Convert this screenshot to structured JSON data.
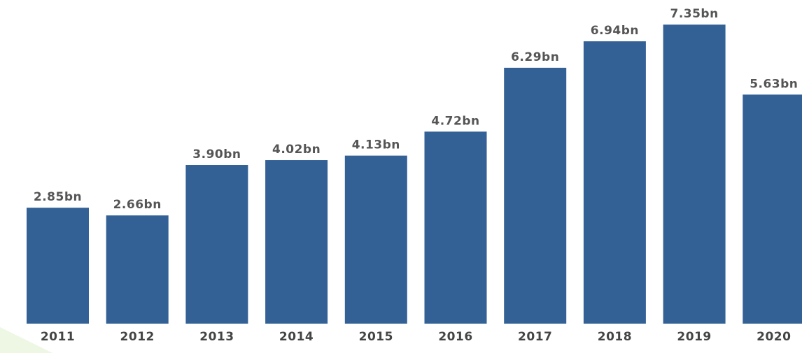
{
  "chart_data": {
    "type": "bar",
    "categories": [
      "2011",
      "2012",
      "2013",
      "2014",
      "2015",
      "2016",
      "2017",
      "2018",
      "2019",
      "2020"
    ],
    "values": [
      2.85,
      2.66,
      3.9,
      4.02,
      4.13,
      4.72,
      6.29,
      6.94,
      7.35,
      5.63
    ],
    "value_labels": [
      "2.85bn",
      "2.66bn",
      "3.90bn",
      "4.02bn",
      "4.13bn",
      "4.72bn",
      "6.29bn",
      "6.94bn",
      "7.35bn",
      "5.63bn"
    ],
    "color": "#336196",
    "ylim": [
      0,
      8
    ]
  }
}
